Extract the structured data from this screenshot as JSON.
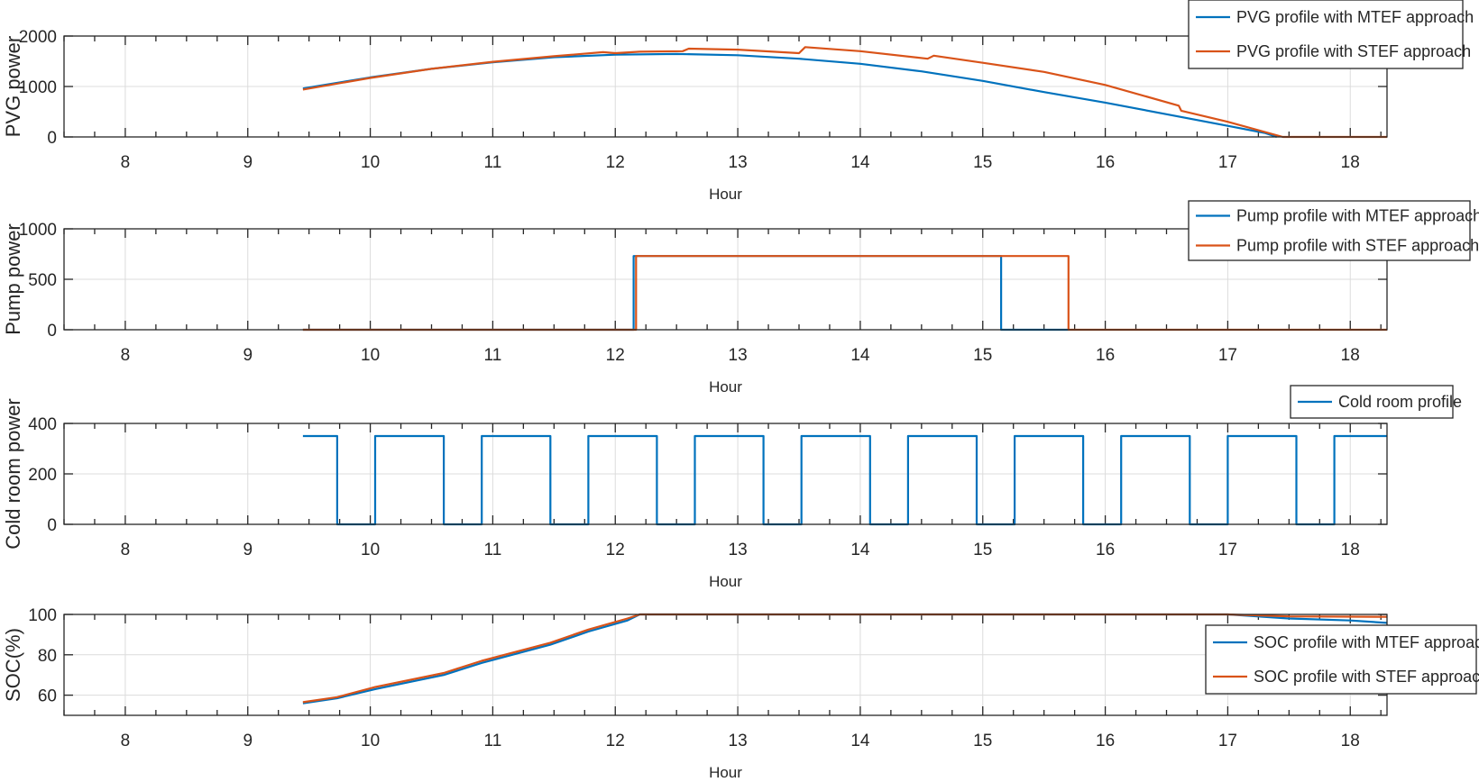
{
  "chart_data": [
    {
      "type": "line",
      "xlabel": "Hour",
      "ylabel": "PVG power",
      "xlim": [
        7.5,
        18.3
      ],
      "ylim": [
        0,
        2000
      ],
      "xticks": [
        "8",
        "9",
        "10",
        "11",
        "12",
        "13",
        "14",
        "15",
        "16",
        "17",
        "18"
      ],
      "yticks": [
        "0",
        "1000",
        "2000"
      ],
      "grid": true,
      "legend_location": "top-right",
      "series": [
        {
          "name": "PVG profile with MTEF approach",
          "color": "#0072BD",
          "step": false,
          "x": [
            9.45,
            10.0,
            10.5,
            11.0,
            11.5,
            12.0,
            12.5,
            13.0,
            13.5,
            14.0,
            14.5,
            15.0,
            15.5,
            16.0,
            16.5,
            17.0,
            17.3,
            17.4
          ],
          "y": [
            960,
            1180,
            1350,
            1480,
            1580,
            1630,
            1645,
            1620,
            1550,
            1450,
            1300,
            1110,
            890,
            680,
            450,
            220,
            80,
            0
          ]
        },
        {
          "name": "PVG profile with STEF approach",
          "color": "#D95319",
          "step": false,
          "x": [
            9.45,
            10.0,
            10.5,
            11.0,
            11.5,
            11.9,
            12.0,
            12.2,
            12.55,
            12.6,
            13.0,
            13.5,
            13.55,
            14.0,
            14.55,
            14.6,
            15.0,
            15.5,
            16.0,
            16.6,
            16.62,
            17.0,
            17.45,
            18.3
          ],
          "y": [
            940,
            1170,
            1350,
            1490,
            1600,
            1680,
            1660,
            1690,
            1700,
            1750,
            1730,
            1660,
            1780,
            1700,
            1550,
            1610,
            1470,
            1290,
            1030,
            620,
            520,
            300,
            0,
            0
          ]
        }
      ]
    },
    {
      "type": "line",
      "xlabel": "Hour",
      "ylabel": "Pump power",
      "xlim": [
        7.5,
        18.3
      ],
      "ylim": [
        0,
        1000
      ],
      "xticks": [
        "8",
        "9",
        "10",
        "11",
        "12",
        "13",
        "14",
        "15",
        "16",
        "17",
        "18"
      ],
      "yticks": [
        "0",
        "500",
        "1000"
      ],
      "grid": true,
      "legend_location": "top-right",
      "series": [
        {
          "name": "Pump profile with MTEF approach",
          "color": "#0072BD",
          "step": true,
          "x": [
            9.45,
            12.15,
            12.15,
            15.15,
            15.15,
            15.7
          ],
          "y": [
            0,
            0,
            730,
            730,
            0,
            0
          ]
        },
        {
          "name": "Pump profile with STEF approach",
          "color": "#D95319",
          "step": true,
          "x": [
            9.45,
            12.17,
            12.17,
            15.7,
            15.7,
            18.3
          ],
          "y": [
            0,
            0,
            730,
            730,
            0,
            0
          ]
        }
      ]
    },
    {
      "type": "line",
      "xlabel": "Hour",
      "ylabel": "Cold room power",
      "xlim": [
        7.5,
        18.3
      ],
      "ylim": [
        0,
        400
      ],
      "xticks": [
        "8",
        "9",
        "10",
        "11",
        "12",
        "13",
        "14",
        "15",
        "16",
        "17",
        "18"
      ],
      "yticks": [
        "0",
        "200",
        "400"
      ],
      "grid": true,
      "legend_location": "top-right",
      "series": [
        {
          "name": "Cold room profile",
          "color": "#0072BD",
          "step": true,
          "x": [
            9.45,
            9.73,
            9.73,
            10.04,
            10.04,
            10.6,
            10.6,
            10.91,
            10.91,
            11.47,
            11.47,
            11.78,
            11.78,
            12.34,
            12.34,
            12.65,
            12.65,
            13.21,
            13.21,
            13.52,
            13.52,
            14.08,
            14.08,
            14.39,
            14.39,
            14.95,
            14.95,
            15.26,
            15.26,
            15.82,
            15.82,
            16.13,
            16.13,
            16.69,
            16.69,
            17.0,
            17.0,
            17.56,
            17.56,
            17.87,
            17.87,
            18.3
          ],
          "y": [
            350,
            350,
            0,
            0,
            350,
            350,
            0,
            0,
            350,
            350,
            0,
            0,
            350,
            350,
            0,
            0,
            350,
            350,
            0,
            0,
            350,
            350,
            0,
            0,
            350,
            350,
            0,
            0,
            350,
            350,
            0,
            0,
            350,
            350,
            0,
            0,
            350,
            350,
            0,
            0,
            350,
            350
          ]
        }
      ]
    },
    {
      "type": "line",
      "xlabel": "Hour",
      "ylabel": "SOC(%)",
      "xlim": [
        7.5,
        18.3
      ],
      "ylim": [
        50,
        100
      ],
      "xticks": [
        "8",
        "9",
        "10",
        "11",
        "12",
        "13",
        "14",
        "15",
        "16",
        "17",
        "18"
      ],
      "yticks": [
        "60",
        "80",
        "100"
      ],
      "grid": true,
      "legend_location": "right",
      "series": [
        {
          "name": "SOC profile with MTEF approach",
          "color": "#0072BD",
          "step": false,
          "x": [
            9.45,
            9.73,
            10.04,
            10.6,
            10.91,
            11.47,
            11.78,
            12.1,
            12.2,
            17.0,
            17.5,
            18.0,
            18.3
          ],
          "y": [
            56,
            58.5,
            63,
            70,
            76,
            85,
            91.5,
            97,
            100,
            100,
            98,
            97,
            95.8
          ]
        },
        {
          "name": "SOC profile with STEF approach",
          "color": "#D95319",
          "step": false,
          "x": [
            9.45,
            9.73,
            10.04,
            10.6,
            10.91,
            11.47,
            11.78,
            12.1,
            12.2,
            17.0,
            17.5,
            18.3
          ],
          "y": [
            56.5,
            59,
            64,
            71,
            77,
            86,
            92.5,
            98,
            100,
            100,
            99,
            98.8
          ]
        }
      ]
    }
  ]
}
